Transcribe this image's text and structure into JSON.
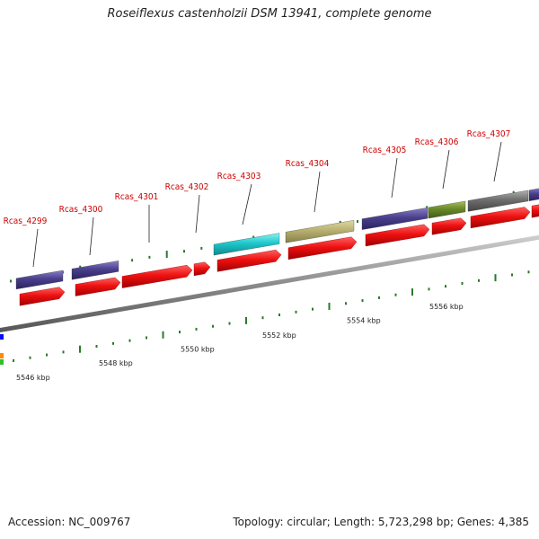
{
  "title": "Roseiflexus castenholzii DSM 13941, complete genome",
  "footer": {
    "accession": "Accession: NC_009767",
    "summary": "Topology: circular; Length: 5,723,298 bp; Genes: 4,385"
  },
  "axis_labels": [
    "5546 kbp",
    "5548 kbp",
    "5550 kbp",
    "5552 kbp",
    "5554 kbp",
    "5556 kbp"
  ],
  "gene_labels": [
    "Rcas_4299",
    "Rcas_4300",
    "Rcas_4301",
    "Rcas_4302",
    "Rcas_4303",
    "Rcas_4304",
    "Rcas_4305",
    "Rcas_4306",
    "Rcas_4307"
  ],
  "colors": {
    "gene_red": "#ee1111",
    "cog_purple": "#4a3f8c",
    "cog_cyan": "#1ec8cc",
    "cog_khaki": "#b8b070",
    "cog_green": "#6a8a2a",
    "cog_gray": "#6e6e6e",
    "backbone": "#8c8c8c",
    "tick_green": "#2a7a2a",
    "label_red": "#cc0000"
  }
}
